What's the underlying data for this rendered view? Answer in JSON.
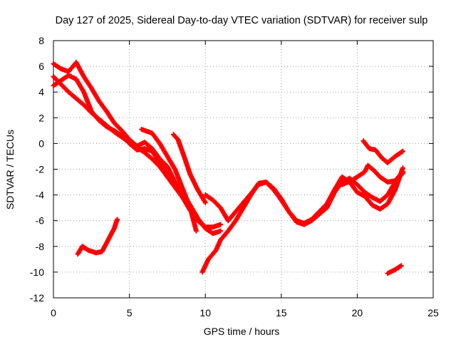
{
  "chart_data": {
    "type": "scatter",
    "title": "Day 127 of 2025, Sidereal Day-to-day VTEC variation (SDTVAR) for receiver sulp",
    "xlabel": "GPS time / hours",
    "ylabel": "SDTVAR / TECUs",
    "xlim": [
      0,
      25
    ],
    "ylim": [
      -12,
      8
    ],
    "xticks": [
      0,
      5,
      10,
      15,
      20,
      25
    ],
    "yticks": [
      -12,
      -10,
      -8,
      -6,
      -4,
      -2,
      0,
      2,
      4,
      6,
      8
    ],
    "xtick_labels": [
      "0",
      "5",
      "10",
      "15",
      "20",
      "25"
    ],
    "ytick_labels": [
      "-12",
      "-10",
      "-8",
      "-6",
      "-4",
      "-2",
      "0",
      "2",
      "4",
      "6",
      "8"
    ],
    "grid": true,
    "marker": "plus",
    "color": "#ff0000",
    "series": [
      {
        "name": "track-1",
        "points": [
          [
            0.0,
            5.2
          ],
          [
            0.5,
            4.6
          ],
          [
            1.0,
            4.0
          ],
          [
            1.5,
            3.5
          ],
          [
            2.0,
            3.0
          ],
          [
            2.5,
            2.4
          ],
          [
            3.0,
            1.9
          ],
          [
            3.5,
            1.4
          ],
          [
            4.0,
            0.9
          ],
          [
            4.5,
            0.5
          ],
          [
            5.0,
            0.1
          ],
          [
            5.5,
            -0.3
          ],
          [
            6.0,
            -0.7
          ],
          [
            6.5,
            -1.2
          ],
          [
            7.0,
            -1.8
          ],
          [
            7.5,
            -2.6
          ],
          [
            8.0,
            -3.4
          ],
          [
            8.5,
            -4.2
          ],
          [
            9.0,
            -5.2
          ],
          [
            9.5,
            -6.0
          ],
          [
            10.0,
            -6.5
          ],
          [
            10.5,
            -6.5
          ],
          [
            11.0,
            -6.3
          ]
        ]
      },
      {
        "name": "track-2",
        "points": [
          [
            0.0,
            4.5
          ],
          [
            0.5,
            4.9
          ],
          [
            1.0,
            5.3
          ],
          [
            1.5,
            5.0
          ],
          [
            2.0,
            4.0
          ],
          [
            2.5,
            2.5
          ],
          [
            3.0,
            1.8
          ],
          [
            3.5,
            1.3
          ],
          [
            4.0,
            1.0
          ],
          [
            4.5,
            0.6
          ],
          [
            5.0,
            0.0
          ],
          [
            5.5,
            -0.5
          ],
          [
            6.0,
            -0.4
          ],
          [
            6.5,
            -0.6
          ],
          [
            7.0,
            -1.5
          ],
          [
            7.5,
            -2.3
          ],
          [
            8.0,
            -3.0
          ]
        ]
      },
      {
        "name": "track-3",
        "points": [
          [
            0.0,
            6.2
          ],
          [
            0.5,
            5.8
          ],
          [
            1.0,
            5.6
          ],
          [
            1.5,
            6.3
          ],
          [
            2.0,
            5.2
          ],
          [
            2.5,
            4.3
          ],
          [
            3.0,
            3.3
          ],
          [
            3.5,
            2.5
          ],
          [
            4.0,
            1.6
          ],
          [
            4.5,
            1.0
          ],
          [
            5.0,
            0.3
          ],
          [
            5.5,
            -0.2
          ],
          [
            6.0,
            0.1
          ],
          [
            6.5,
            -0.4
          ],
          [
            7.0,
            -1.2
          ],
          [
            7.5,
            -1.8
          ],
          [
            8.0,
            -3.0
          ],
          [
            8.5,
            -3.8
          ],
          [
            9.0,
            -4.8
          ],
          [
            9.5,
            -5.8
          ],
          [
            10.0,
            -6.6
          ],
          [
            10.5,
            -7.0
          ],
          [
            11.0,
            -6.8
          ]
        ]
      },
      {
        "name": "track-4",
        "points": [
          [
            5.8,
            1.1
          ],
          [
            6.5,
            0.8
          ],
          [
            7.0,
            0.0
          ],
          [
            7.5,
            -1.0
          ],
          [
            8.0,
            -2.0
          ],
          [
            8.5,
            -3.5
          ],
          [
            9.0,
            -5.0
          ],
          [
            9.4,
            -6.8
          ]
        ]
      },
      {
        "name": "track-5",
        "points": [
          [
            7.9,
            0.7
          ],
          [
            8.2,
            0.3
          ],
          [
            8.6,
            -1.0
          ],
          [
            9.0,
            -2.4
          ],
          [
            9.5,
            -3.6
          ],
          [
            10.0,
            -4.6
          ]
        ]
      },
      {
        "name": "track-6",
        "points": [
          [
            9.8,
            -10.0
          ],
          [
            10.2,
            -9.0
          ],
          [
            10.7,
            -8.3
          ],
          [
            11.0,
            -7.5
          ],
          [
            11.5,
            -6.8
          ],
          [
            12.0,
            -6.0
          ],
          [
            12.5,
            -5.0
          ],
          [
            13.0,
            -4.0
          ],
          [
            13.5,
            -3.1
          ],
          [
            14.0,
            -3.0
          ],
          [
            14.5,
            -3.6
          ],
          [
            15.0,
            -4.4
          ],
          [
            15.5,
            -5.3
          ],
          [
            16.0,
            -6.0
          ],
          [
            16.5,
            -6.2
          ],
          [
            17.0,
            -5.9
          ],
          [
            17.5,
            -5.3
          ],
          [
            18.0,
            -4.7
          ],
          [
            18.5,
            -3.6
          ],
          [
            19.0,
            -2.6
          ],
          [
            19.5,
            -3.0
          ],
          [
            20.0,
            -3.8
          ],
          [
            20.5,
            -4.1
          ],
          [
            21.0,
            -4.8
          ],
          [
            21.5,
            -5.1
          ],
          [
            22.0,
            -4.7
          ],
          [
            22.5,
            -3.6
          ],
          [
            23.0,
            -1.9
          ]
        ]
      },
      {
        "name": "track-7",
        "points": [
          [
            10.0,
            -4.0
          ],
          [
            10.5,
            -4.4
          ],
          [
            11.0,
            -5.0
          ],
          [
            11.5,
            -6.0
          ],
          [
            12.0,
            -5.3
          ],
          [
            12.5,
            -4.6
          ],
          [
            13.0,
            -3.9
          ],
          [
            13.5,
            -3.2
          ],
          [
            14.0,
            -3.0
          ],
          [
            14.5,
            -3.5
          ],
          [
            15.0,
            -4.3
          ],
          [
            15.5,
            -5.3
          ],
          [
            16.0,
            -6.1
          ],
          [
            16.5,
            -6.3
          ],
          [
            17.0,
            -6.0
          ],
          [
            17.5,
            -5.5
          ],
          [
            18.0,
            -5.0
          ],
          [
            18.5,
            -3.8
          ],
          [
            19.0,
            -3.0
          ],
          [
            19.5,
            -2.7
          ],
          [
            20.0,
            -3.2
          ],
          [
            20.5,
            -3.8
          ],
          [
            21.0,
            -4.2
          ],
          [
            21.5,
            -4.5
          ],
          [
            22.0,
            -4.0
          ],
          [
            22.5,
            -3.0
          ],
          [
            23.0,
            -2.3
          ]
        ]
      },
      {
        "name": "track-8",
        "points": [
          [
            19.0,
            -3.2
          ],
          [
            19.6,
            -2.9
          ],
          [
            20.0,
            -2.6
          ],
          [
            20.5,
            -2.2
          ],
          [
            20.7,
            -1.7
          ],
          [
            21.1,
            -2.1
          ],
          [
            21.5,
            -2.6
          ],
          [
            22.0,
            -3.0
          ],
          [
            22.5,
            -2.9
          ],
          [
            23.0,
            -2.2
          ]
        ]
      },
      {
        "name": "track-9",
        "points": [
          [
            20.4,
            0.2
          ],
          [
            20.8,
            -0.4
          ],
          [
            21.2,
            -0.5
          ],
          [
            21.6,
            -1.1
          ],
          [
            22.0,
            -1.5
          ],
          [
            22.5,
            -1.0
          ],
          [
            23.0,
            -0.6
          ]
        ]
      },
      {
        "name": "track-10",
        "points": [
          [
            1.6,
            -8.6
          ],
          [
            1.9,
            -8.0
          ],
          [
            2.3,
            -8.3
          ],
          [
            2.8,
            -8.5
          ],
          [
            3.2,
            -8.4
          ],
          [
            3.6,
            -7.5
          ],
          [
            4.0,
            -6.6
          ],
          [
            4.2,
            -5.9
          ]
        ]
      },
      {
        "name": "track-11",
        "points": [
          [
            22.0,
            -10.1
          ],
          [
            22.5,
            -9.8
          ],
          [
            22.9,
            -9.5
          ]
        ]
      }
    ]
  }
}
